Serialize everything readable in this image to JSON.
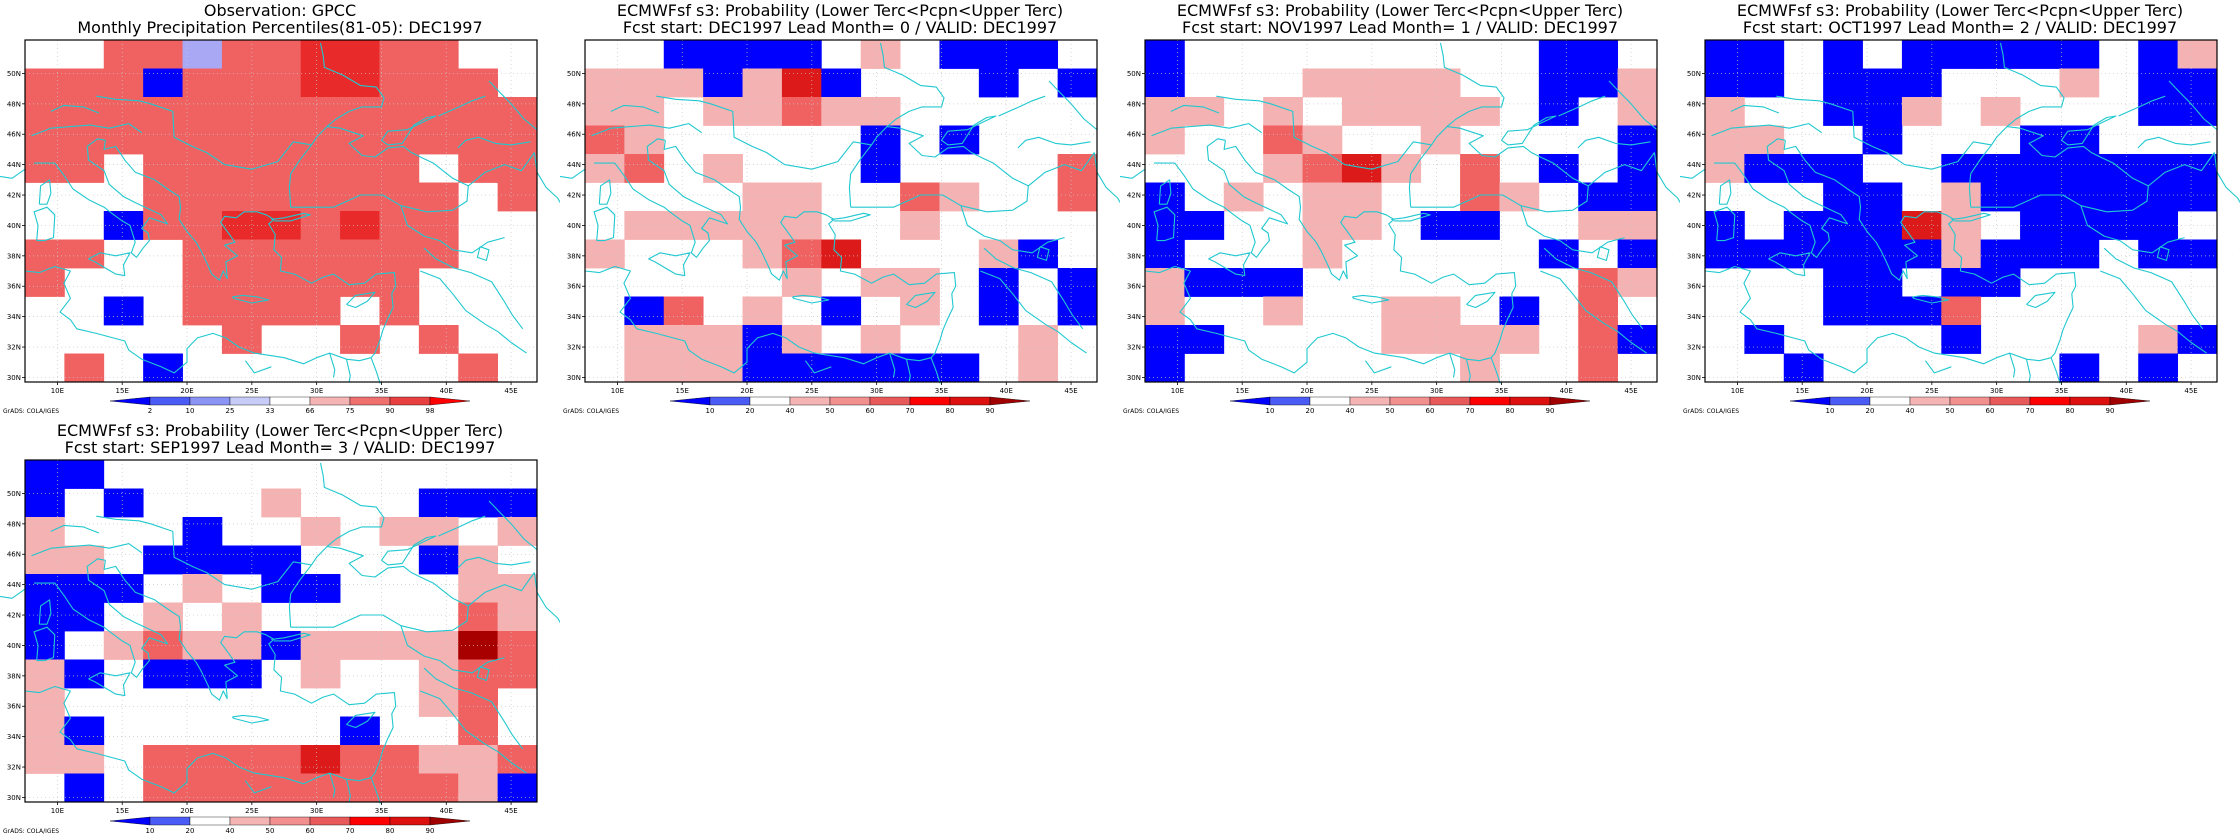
{
  "credit": "GrADS: COLA/IGES",
  "lat_labels": [
    "30N",
    "32N",
    "34N",
    "36N",
    "38N",
    "40N",
    "42N",
    "44N",
    "46N",
    "48N",
    "50N"
  ],
  "lon_labels": [
    "10E",
    "15E",
    "20E",
    "25E",
    "30E",
    "35E",
    "40E",
    "45E"
  ],
  "panels": [
    {
      "title1": "Observation: GPCC",
      "title2": "Monthly Precipitation Percentiles(81-05): DEC1997",
      "colorbar": {
        "labels": [
          "2",
          "10",
          "25",
          "33",
          "66",
          "75",
          "90",
          "98"
        ],
        "colors": [
          "#0000ff",
          "#4a5cf5",
          "#8a94f5",
          "#c6ccf7",
          "#ffffff",
          "#f5b4b4",
          "#f07070",
          "#e84040",
          "#ff0000"
        ]
      },
      "grid": [
        "..rrwrrRRrr..",
        "rrrbrrrRRrrr.",
        "rrrrrrrrrrrrr",
        "rrrrrrrrrrrrr",
        "rr.rrrrrrr.rr",
        "...rrrrrrrr.r",
        "..brrRRrRrr..",
        "rr..rrrrrrr..",
        "r...rrrrrr...",
        "..b.rrrr.r...",
        ".....r..r.r..",
        ".r.b.......r."
      ]
    },
    {
      "title1": "ECMWFsf s3: Probability (Lower Terc<Pcpn<Upper Terc)",
      "title2": "Fcst start: DEC1997   Lead Month= 0 / VALID: DEC1997",
      "colorbar": {
        "labels": [
          "10",
          "20",
          "40",
          "50",
          "60",
          "70",
          "80",
          "90"
        ],
        "colors": [
          "#0000ff",
          "#4a5cf5",
          "#ffffff",
          "#f5b4b4",
          "#f28f8f",
          "#e85a5a",
          "#ff0000",
          "#dd1010",
          "#a00000"
        ]
      },
      "grid": [
        "..bbbb.p.bbb.",
        "pppbpRb...b.b",
        "pp.pprpp.....",
        "rp.....b.b...",
        "pr.p...b....r",
        "....pp..rp..r",
        ".ppppp..p....",
        "p...prR...pb.",
        ".....p.pp.b.b",
        ".br.p.b.p.b.b",
        ".pppbp.p...p.",
        ".pppbbbbbb.p."
      ]
    },
    {
      "title1": "ECMWFsf s3: Probability (Lower Terc<Pcpn<Upper Terc)",
      "title2": "Fcst start: NOV1997   Lead Month= 1 / VALID: DEC1997",
      "colorbar": {
        "labels": [
          "10",
          "20",
          "40",
          "50",
          "60",
          "70",
          "80",
          "90"
        ],
        "colors": [
          "#0000ff",
          "#4a5cf5",
          "#ffffff",
          "#f5b4b4",
          "#f28f8f",
          "#e85a5a",
          "#ff0000",
          "#dd1010",
          "#a00000"
        ]
      },
      "grid": [
        "b.........bb.",
        "b...pppp..bbp",
        "pp.p.pppp.b.p",
        "p..rp..p....b",
        "...prRp.r.b.b",
        "b.p.pp..rp.bb",
        "bb..pp.bb..pp",
        "b...p.....b.b",
        "pbbb.......rp",
        "p..p..pp.b.r.",
        "bb....pppp.rb",
        "b.......p..r."
      ]
    },
    {
      "title1": "ECMWFsf s3: Probability (Lower Terc<Pcpn<Upper Terc)",
      "title2": "Fcst start: OCT1997   Lead Month= 2 / VALID: DEC1997",
      "colorbar": {
        "labels": [
          "10",
          "20",
          "40",
          "50",
          "60",
          "70",
          "80",
          "90"
        ],
        "colors": [
          "#0000ff",
          "#4a5cf5",
          "#ffffff",
          "#f5b4b4",
          "#f28f8f",
          "#e85a5a",
          "#ff0000",
          "#dd1010",
          "#a00000"
        ]
      },
      "grid": [
        "bb.b.bbbbb.bp",
        "bb.bbb...p.bb",
        "p..bbp.p...bb",
        "pp..b...bb...",
        "pbbb..bbbbbbb",
        "...bb.pbbbbbb",
        "b.bbbRp.bbbb.",
        "bbbbbbpbbb.bb",
        "...bb.bb.....",
        "...bbbr......",
        ".b....b....pb",
        "..b......b.b."
      ]
    },
    {
      "title1": "ECMWFsf s3: Probability (Lower Terc<Pcpn<Upper Terc)",
      "title2": "Fcst start: SEP1997   Lead Month= 3 / VALID: DEC1997",
      "colorbar": {
        "labels": [
          "10",
          "20",
          "40",
          "50",
          "60",
          "70",
          "80",
          "90"
        ],
        "colors": [
          "#0000ff",
          "#4a5cf5",
          "#ffffff",
          "#f5b4b4",
          "#f28f8f",
          "#e85a5a",
          "#ff0000",
          "#dd1010",
          "#a00000"
        ]
      },
      "grid": [
        "bb...........",
        "b.b...p...bbb",
        "p...b..p.pp.p",
        "pp.bbbb...bp.",
        "bbb.p.bb...pp",
        "bb.p.p.....rp",
        "b.prppbppppDr",
        "pb.bbb.p..prr",
        "p.........pr.",
        "pb......b..r.",
        "pp.rrrrRrrppr",
        ".b.rrrrrrrrpb"
      ]
    }
  ]
}
